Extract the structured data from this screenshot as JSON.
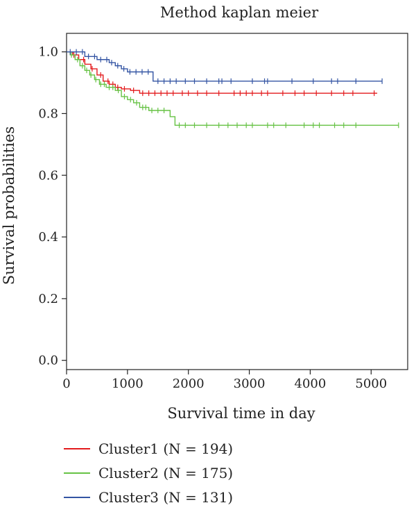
{
  "chart_data": {
    "type": "line",
    "subtype": "kaplan-meier step curves with censor ticks",
    "title": "Method kaplan meier",
    "xlabel": "Survival time in day",
    "ylabel": "Survival probabilities",
    "xlim": [
      0,
      5600
    ],
    "ylim": [
      -0.03,
      1.06
    ],
    "xticks": [
      0,
      1000,
      2000,
      3000,
      4000,
      5000
    ],
    "yticks": [
      0.0,
      0.2,
      0.4,
      0.6,
      0.8,
      1.0
    ],
    "ytick_labels": [
      "0.0",
      "0.2",
      "0.4",
      "0.6",
      "0.8",
      "1.0"
    ],
    "grid": false,
    "legend_position": "bottom",
    "series": [
      {
        "name": "Cluster1 (N = 194)",
        "color": "#e31a1c",
        "steps": [
          [
            0,
            1.0
          ],
          [
            100,
            0.99
          ],
          [
            200,
            0.975
          ],
          [
            300,
            0.96
          ],
          [
            400,
            0.945
          ],
          [
            500,
            0.925
          ],
          [
            600,
            0.905
          ],
          [
            700,
            0.895
          ],
          [
            800,
            0.885
          ],
          [
            900,
            0.88
          ],
          [
            1050,
            0.875
          ],
          [
            1200,
            0.866
          ],
          [
            5100,
            0.866
          ]
        ],
        "censor_x": [
          120,
          280,
          420,
          560,
          680,
          760,
          840,
          950,
          1100,
          1250,
          1350,
          1450,
          1550,
          1650,
          1750,
          1900,
          2000,
          2150,
          2300,
          2500,
          2750,
          2850,
          2950,
          3050,
          3200,
          3300,
          3550,
          3750,
          3900,
          4100,
          4350,
          4550,
          4700,
          5050
        ]
      },
      {
        "name": "Cluster2 (N = 175)",
        "color": "#66c244",
        "steps": [
          [
            0,
            1.0
          ],
          [
            60,
            0.99
          ],
          [
            140,
            0.975
          ],
          [
            220,
            0.955
          ],
          [
            300,
            0.94
          ],
          [
            380,
            0.925
          ],
          [
            460,
            0.91
          ],
          [
            540,
            0.895
          ],
          [
            650,
            0.885
          ],
          [
            800,
            0.875
          ],
          [
            900,
            0.855
          ],
          [
            1000,
            0.845
          ],
          [
            1100,
            0.835
          ],
          [
            1200,
            0.82
          ],
          [
            1350,
            0.81
          ],
          [
            1700,
            0.79
          ],
          [
            1780,
            0.762
          ],
          [
            5450,
            0.762
          ]
        ],
        "censor_x": [
          80,
          180,
          260,
          330,
          400,
          480,
          560,
          620,
          700,
          760,
          850,
          950,
          1050,
          1150,
          1250,
          1300,
          1400,
          1500,
          1600,
          1850,
          1950,
          2100,
          2300,
          2500,
          2650,
          2800,
          2950,
          3050,
          3300,
          3400,
          3600,
          3900,
          4050,
          4150,
          4400,
          4550,
          4750,
          5450
        ]
      },
      {
        "name": "Cluster3 (N = 131)",
        "color": "#3354a3",
        "steps": [
          [
            0,
            1.0
          ],
          [
            300,
            0.985
          ],
          [
            500,
            0.975
          ],
          [
            700,
            0.965
          ],
          [
            800,
            0.955
          ],
          [
            900,
            0.945
          ],
          [
            1000,
            0.935
          ],
          [
            1420,
            0.905
          ],
          [
            5180,
            0.905
          ]
        ],
        "censor_x": [
          60,
          160,
          260,
          360,
          460,
          560,
          660,
          740,
          840,
          940,
          1040,
          1140,
          1240,
          1340,
          1500,
          1600,
          1700,
          1800,
          1950,
          2100,
          2300,
          2500,
          2550,
          2700,
          3050,
          3250,
          3300,
          3700,
          4050,
          4350,
          4450,
          4750,
          5180
        ]
      }
    ]
  }
}
